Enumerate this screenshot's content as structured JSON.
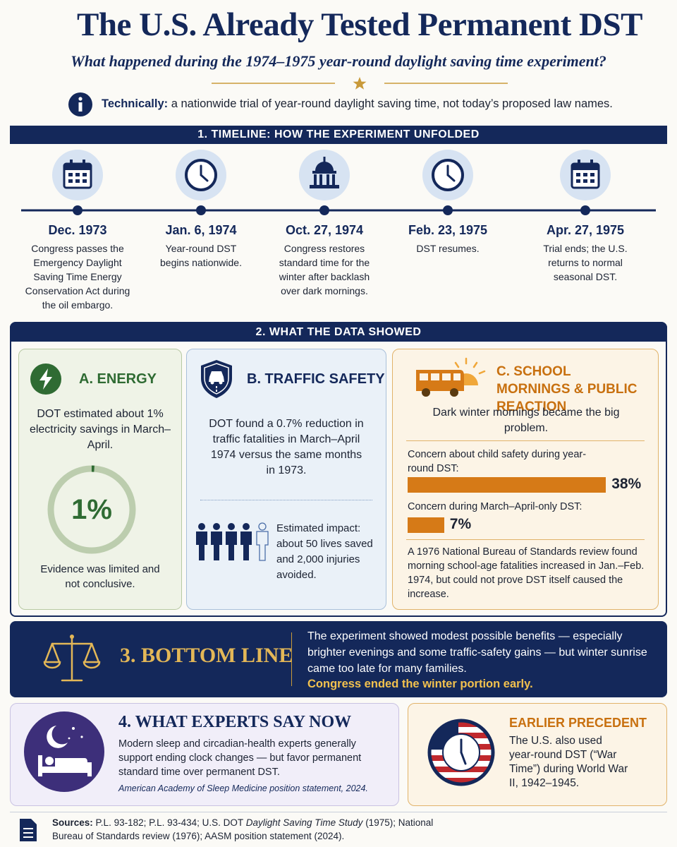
{
  "header": {
    "title": "The U.S. Already Tested Permanent DST",
    "subtitle": "What happened during the 1974–1975 year-round daylight saving time experiment?",
    "note_label": "Technically:",
    "note_text": "a nationwide trial of year-round daylight saving time, not today’s proposed law names."
  },
  "timeline": {
    "heading": "1. TIMELINE: HOW THE EXPERIMENT UNFOLDED",
    "events": [
      {
        "date": "Dec. 1973",
        "text": "Congress passes the Emergency Daylight Saving Time Energy Conservation Act during the oil embargo."
      },
      {
        "date": "Jan. 6, 1974",
        "text": "Year-round DST begins nationwide."
      },
      {
        "date": "Oct. 27, 1974",
        "text": "Congress restores standard time for the winter after backlash over dark mornings."
      },
      {
        "date": "Feb. 23, 1975",
        "text": "DST resumes."
      },
      {
        "date": "Apr. 27, 1975",
        "text": "Trial ends; the U.S. returns to normal seasonal DST."
      }
    ]
  },
  "data_section": {
    "heading": "2. WHAT THE DATA SHOWED",
    "energy": {
      "title": "A. ENERGY",
      "text": "DOT estimated about 1% electricity savings in March–April.",
      "gauge": {
        "value": 1,
        "label": "1%"
      },
      "footnote": "Evidence was limited and not conclusive."
    },
    "traffic": {
      "title": "B. TRAFFIC SAFETY",
      "text": "DOT found a 0.7% reduction in traffic fatalities in March–April 1974 versus the same months in 1973.",
      "impact": "Estimated impact: about 50 lives saved and 2,000 injuries avoided."
    },
    "school": {
      "title": "C. SCHOOL MORNINGS & PUBLIC REACTION",
      "intro": "Dark winter mornings became the big problem.",
      "bars": [
        {
          "label": "Concern about child safety during year-round DST:",
          "value": 38,
          "value_label": "38%"
        },
        {
          "label": "Concern during March–April-only DST:",
          "value": 7,
          "value_label": "7%"
        }
      ],
      "review": "A 1976 National Bureau of Standards review found morning school-age fatalities increased in Jan.–Feb. 1974, but could not prove DST itself caused the increase."
    }
  },
  "bottom_line": {
    "heading": "3. BOTTOM LINE",
    "text": "The experiment showed modest possible benefits — especially brighter evenings and some traffic-safety gains — but winter sunrise came too late for many families.",
    "highlight": "Congress ended the winter portion early."
  },
  "experts": {
    "heading": "4. WHAT EXPERTS SAY NOW",
    "text": "Modern sleep and circadian-health experts generally support ending clock changes — but favor permanent standard time over permanent DST.",
    "citation": "American Academy of Sleep Medicine position statement, 2024."
  },
  "precedent": {
    "title": "EARLIER PRECEDENT",
    "text": "The U.S. also used year-round DST (“War Time”) during World War II, 1942–1945."
  },
  "sources": {
    "label": "Sources:",
    "before": "P.L. 93-182; P.L. 93-434; U.S. DOT",
    "study": "Daylight Saving Time Study",
    "after": "(1975); National Bureau of Standards review (1976); AASM position statement (2024)."
  }
}
